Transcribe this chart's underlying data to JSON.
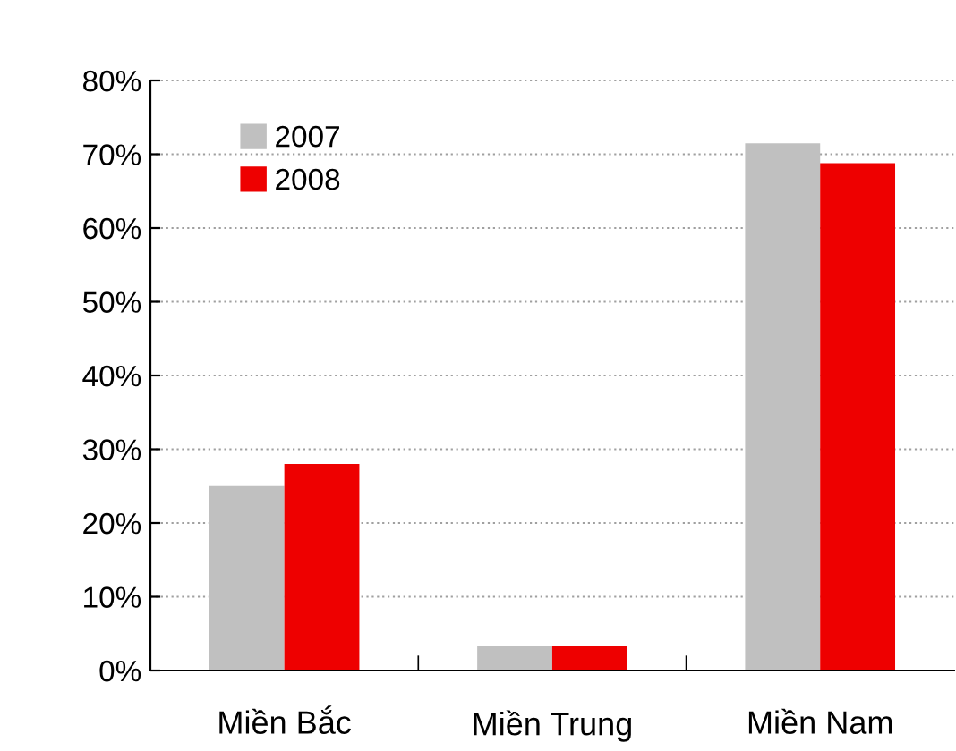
{
  "chart_data": {
    "type": "bar",
    "categories": [
      "Miền Bắc",
      "Miền Trung",
      "Miền Nam"
    ],
    "series": [
      {
        "name": "2007",
        "color": "#c0c0c0",
        "values": [
          25,
          3.4,
          71.5
        ]
      },
      {
        "name": "2008",
        "color": "#ee0000",
        "values": [
          28,
          3.4,
          68.8
        ]
      }
    ],
    "ylim": [
      0,
      80
    ],
    "yticks": [
      {
        "value": 0,
        "label": "0%"
      },
      {
        "value": 10,
        "label": "10%"
      },
      {
        "value": 20,
        "label": "20%"
      },
      {
        "value": 30,
        "label": "30%"
      },
      {
        "value": 40,
        "label": "40%"
      },
      {
        "value": 50,
        "label": "50%"
      },
      {
        "value": 60,
        "label": "60%"
      },
      {
        "value": 70,
        "label": "70%"
      },
      {
        "value": 80,
        "label": "80%"
      }
    ],
    "grid": "y",
    "legend": "top left"
  }
}
